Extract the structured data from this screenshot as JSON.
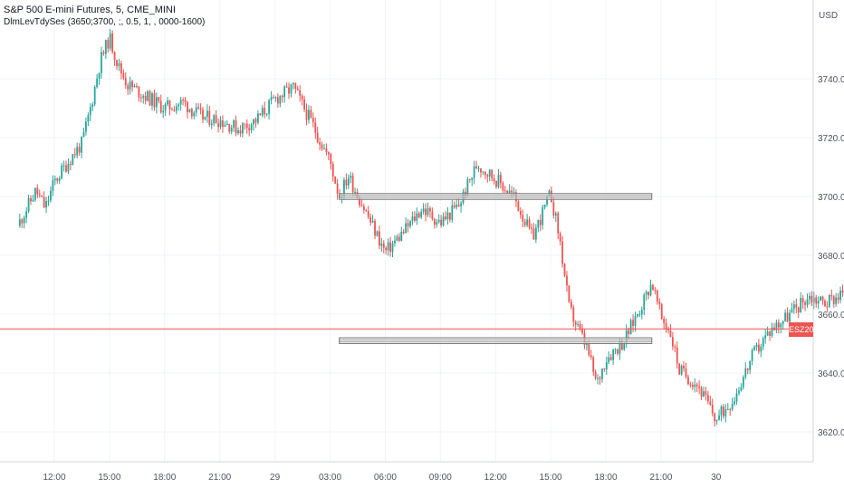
{
  "header": {
    "symbol_line": "S&P 500 E-mini Futures, 5, CME_MINI",
    "indicator_line": "DlmLevTdySes (3650;3700, ;, 0.5, 1, , 0000-1600)"
  },
  "price_axis": {
    "unit": "USD",
    "ticks": [
      "3740.00",
      "3720.00",
      "3700.00",
      "3680.00",
      "3660.00",
      "3640.00",
      "3620.00"
    ]
  },
  "time_axis": {
    "ticks": [
      "12:00",
      "15:00",
      "18:00",
      "21:00",
      "29",
      "03:00",
      "06:00",
      "09:00",
      "12:00",
      "15:00",
      "18:00",
      "21:00",
      "30"
    ]
  },
  "current_price_label": "ESZ2022",
  "colors": {
    "up": "#26a69a",
    "down": "#ef5350",
    "level_band": "#7a7a7a",
    "price_line": "#ef5350",
    "grid": "#f0f3fa"
  },
  "chart_data": {
    "type": "candlestick",
    "title": "S&P 500 E-mini Futures, 5, CME_MINI",
    "ylabel": "USD",
    "ylim": [
      3605,
      3760
    ],
    "x": [
      "12:00",
      "15:00",
      "18:00",
      "21:00",
      "29",
      "03:00",
      "06:00",
      "09:00",
      "12:00",
      "15:00",
      "18:00",
      "21:00",
      "30"
    ],
    "close_path": [
      [
        10.0,
        3690
      ],
      [
        11.0,
        3702
      ],
      [
        11.5,
        3696
      ],
      [
        12.0,
        3705
      ],
      [
        13.0,
        3714
      ],
      [
        13.5,
        3718
      ],
      [
        14.0,
        3731
      ],
      [
        14.5,
        3746
      ],
      [
        15.0,
        3754
      ],
      [
        15.5,
        3744
      ],
      [
        16.0,
        3738
      ],
      [
        17.0,
        3734
      ],
      [
        18.0,
        3730
      ],
      [
        19.0,
        3732
      ],
      [
        20.0,
        3727
      ],
      [
        21.0,
        3726
      ],
      [
        22.0,
        3723
      ],
      [
        23.0,
        3726
      ],
      [
        24.0,
        3733
      ],
      [
        25.0,
        3737
      ],
      [
        26.0,
        3725
      ],
      [
        27.0,
        3712
      ],
      [
        27.5,
        3700
      ],
      [
        28.0,
        3707
      ],
      [
        29.0,
        3694
      ],
      [
        30.0,
        3681
      ],
      [
        31.0,
        3688
      ],
      [
        32.0,
        3696
      ],
      [
        33.0,
        3691
      ],
      [
        34.0,
        3697
      ],
      [
        35.0,
        3711
      ],
      [
        36.0,
        3706
      ],
      [
        37.0,
        3700
      ],
      [
        38.0,
        3686
      ],
      [
        39.0,
        3701
      ],
      [
        39.5,
        3685
      ],
      [
        40.0,
        3662
      ],
      [
        41.0,
        3648
      ],
      [
        41.5,
        3636
      ],
      [
        42.0,
        3645
      ],
      [
        43.0,
        3651
      ],
      [
        44.0,
        3664
      ],
      [
        44.5,
        3671
      ],
      [
        45.0,
        3659
      ],
      [
        45.5,
        3654
      ],
      [
        46.0,
        3641
      ],
      [
        47.0,
        3636
      ],
      [
        47.5,
        3630
      ],
      [
        48.0,
        3624
      ],
      [
        49.0,
        3632
      ],
      [
        50.0,
        3646
      ],
      [
        51.0,
        3655
      ],
      [
        52.0,
        3660
      ],
      [
        53.0,
        3666
      ],
      [
        54.0,
        3664
      ],
      [
        55.0,
        3668
      ],
      [
        56.0,
        3671
      ],
      [
        57.0,
        3662
      ],
      [
        57.5,
        3655
      ]
    ],
    "levels": [
      {
        "price_from": 3699,
        "price_to": 3701,
        "x_from": 27.5,
        "x_to": 44.5
      },
      {
        "price_from": 3650,
        "price_to": 3652,
        "x_from": 27.5,
        "x_to": 44.5
      }
    ],
    "current_price": 3655
  }
}
